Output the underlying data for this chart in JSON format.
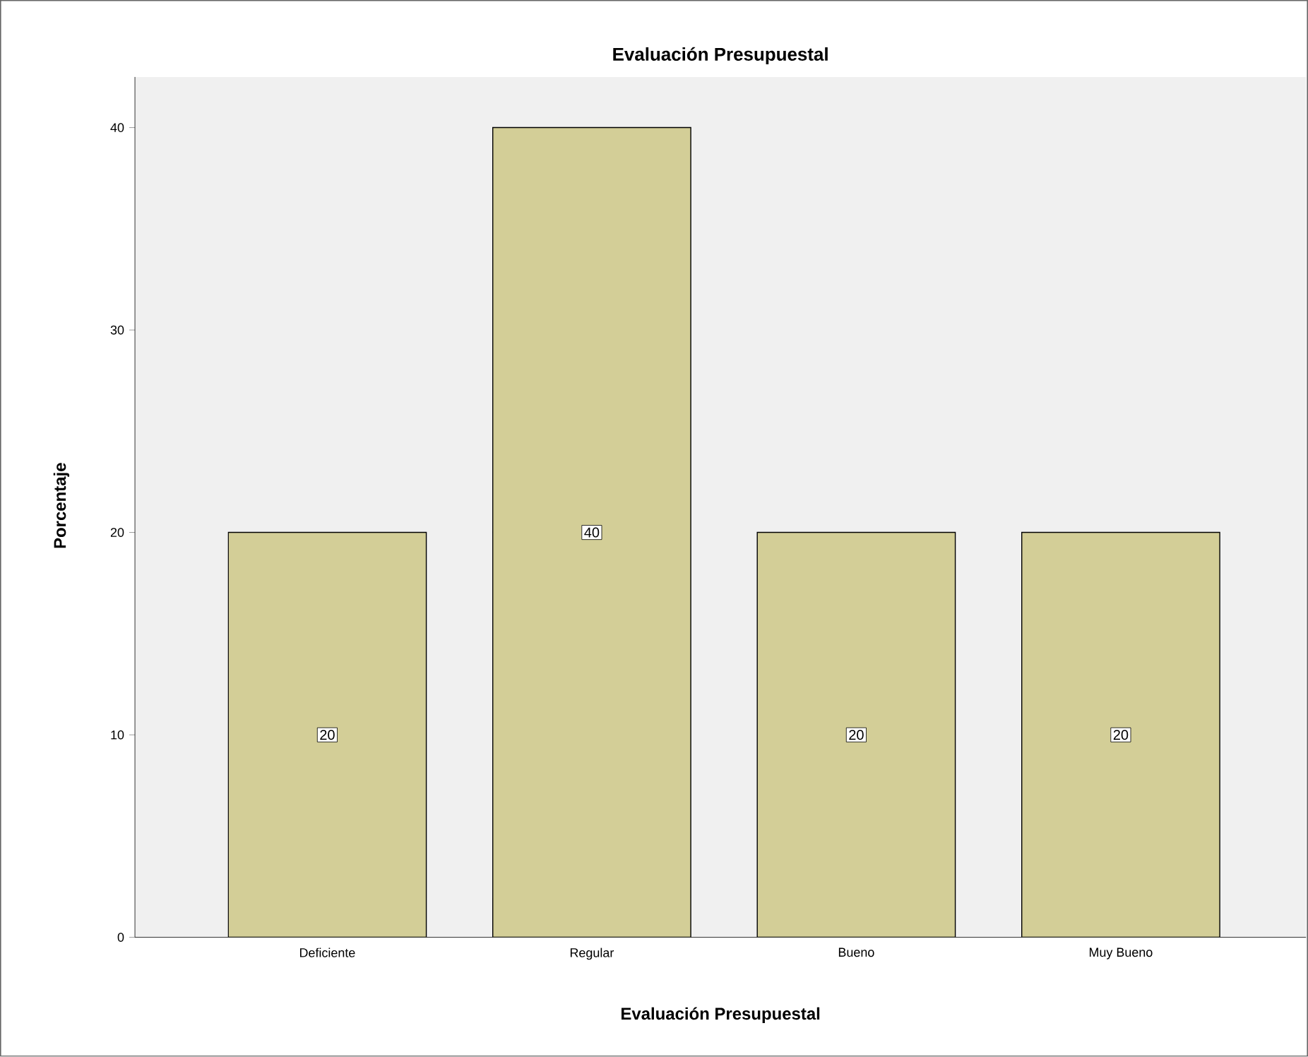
{
  "chart_data": {
    "type": "bar",
    "title": "Evaluación Presupuestal",
    "xlabel": "Evaluación Presupuestal",
    "ylabel": "Porcentaje",
    "categories": [
      "Deficiente",
      "Regular",
      "Bueno",
      "Muy Bueno"
    ],
    "values": [
      20,
      40,
      20,
      20
    ],
    "color": "#d3ce97",
    "ylim": [
      0,
      42.5
    ],
    "yticks": [
      0,
      10,
      20,
      30,
      40
    ],
    "grid": false,
    "data_labels": true
  }
}
